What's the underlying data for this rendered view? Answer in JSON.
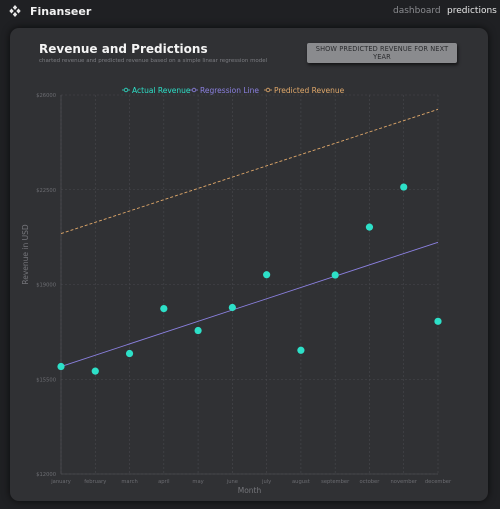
{
  "app": {
    "brand": "Finanseer",
    "nav": [
      {
        "label": "dashboard"
      },
      {
        "label": "predictions"
      }
    ]
  },
  "card": {
    "title": "Revenue and Predictions",
    "subtitle": "charted revenue and predicted revenue based on a simple linear regression model",
    "button_label": "SHOW PREDICTED REVENUE FOR NEXT YEAR"
  },
  "colors": {
    "actual": "#2de0c8",
    "regression": "#8b80e0",
    "predicted": "#e0a86a",
    "grid": "#48494e"
  },
  "chart_data": {
    "type": "scatter",
    "title": "",
    "xlabel": "Month",
    "ylabel": "Revenue in USD",
    "categories": [
      "january",
      "february",
      "march",
      "april",
      "may",
      "june",
      "july",
      "august",
      "september",
      "october",
      "november",
      "december"
    ],
    "ylim": [
      12000,
      26000
    ],
    "yticks": [
      12000,
      15500,
      19000,
      22500,
      26000
    ],
    "ytick_labels": [
      "$12000",
      "$15500",
      "$19000",
      "$22500",
      "$26000"
    ],
    "grid": true,
    "legend_position": "top",
    "series": [
      {
        "name": "Actual Revenue",
        "style": "points",
        "values": [
          15970,
          15800,
          16450,
          18110,
          17300,
          18150,
          19360,
          16570,
          19350,
          21120,
          22600,
          17640
        ]
      },
      {
        "name": "Regression Line",
        "style": "solid-line",
        "start": 15970,
        "end": 20560
      },
      {
        "name": "Predicted Revenue",
        "style": "dashed-line",
        "start": 20880,
        "end": 25470
      }
    ]
  }
}
